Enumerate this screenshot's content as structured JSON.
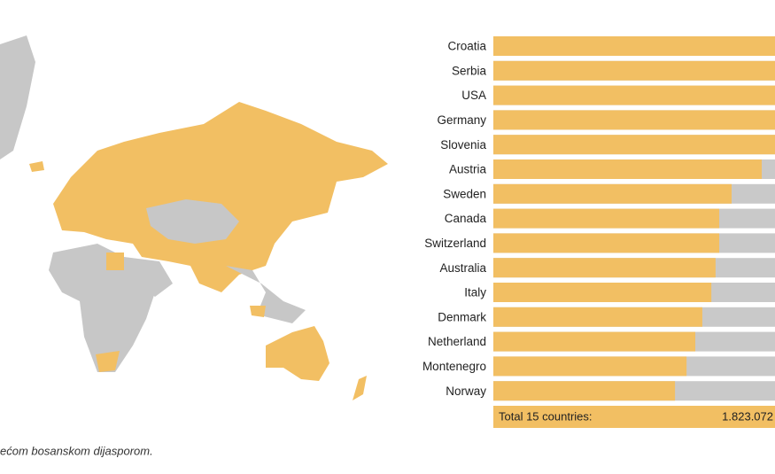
{
  "chart_data": {
    "type": "bar",
    "orientation": "horizontal",
    "categories": [
      "Croatia",
      "Serbia",
      "USA",
      "Germany",
      "Slovenia",
      "Austria",
      "Sweden",
      "Canada",
      "Switzerland",
      "Australia",
      "Italy",
      "Denmark",
      "Netherland",
      "Montenegro",
      "Norway"
    ],
    "values": [
      100,
      100,
      100,
      100,
      100,
      95.3,
      84.6,
      80.2,
      80.2,
      78.9,
      77.4,
      74.2,
      71.7,
      68.6,
      64.5
    ],
    "xlim": [
      0,
      100
    ],
    "color": "#f2bf63",
    "track_color": "#c9c9c9",
    "total": {
      "label": "Total 15 countries:",
      "value": "1.823.072"
    }
  },
  "caption": "ećom bosanskom dijasporom."
}
